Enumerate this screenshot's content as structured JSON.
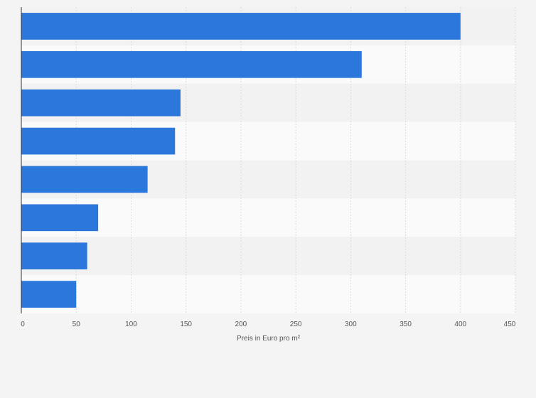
{
  "chart_data": {
    "type": "bar",
    "orientation": "horizontal",
    "categories": [
      "",
      "",
      "",
      "",
      "",
      "",
      "",
      ""
    ],
    "values": [
      400,
      310,
      145,
      140,
      115,
      70,
      60,
      50
    ],
    "xlabel": "Preis in Euro pro m²",
    "xlim": [
      0,
      450
    ],
    "xticks": [
      0,
      50,
      100,
      150,
      200,
      250,
      300,
      350,
      400,
      450
    ],
    "grid": true,
    "colors": {
      "bar": "#2b77dc",
      "band_dark": "#f2f2f2",
      "band_light": "#fafafa",
      "grid": "#dcdcdc",
      "axis": "#333333",
      "tick_text": "#555555"
    }
  }
}
